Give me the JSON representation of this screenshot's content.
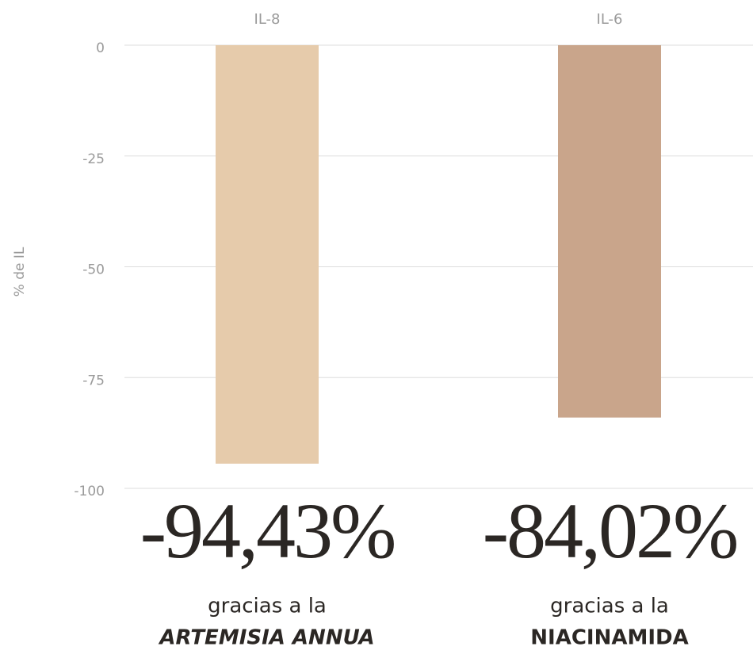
{
  "chart_data": {
    "type": "bar",
    "ylabel": "% de IL",
    "categories": [
      "IL-8",
      "IL-6"
    ],
    "values": [
      -94.43,
      -84.02
    ],
    "value_labels": [
      "-94,43%",
      "-84,02%"
    ],
    "colors": [
      "#e6cbab",
      "#c9a58b"
    ],
    "captions": [
      [
        "gracias a la",
        "ARTEMISIA ANNUA"
      ],
      [
        "gracias a la",
        "NIACINAMIDA"
      ]
    ],
    "ylim": [
      -100,
      0
    ],
    "yticks": [
      0,
      -25,
      -50,
      -75,
      -100
    ],
    "grid": true
  }
}
